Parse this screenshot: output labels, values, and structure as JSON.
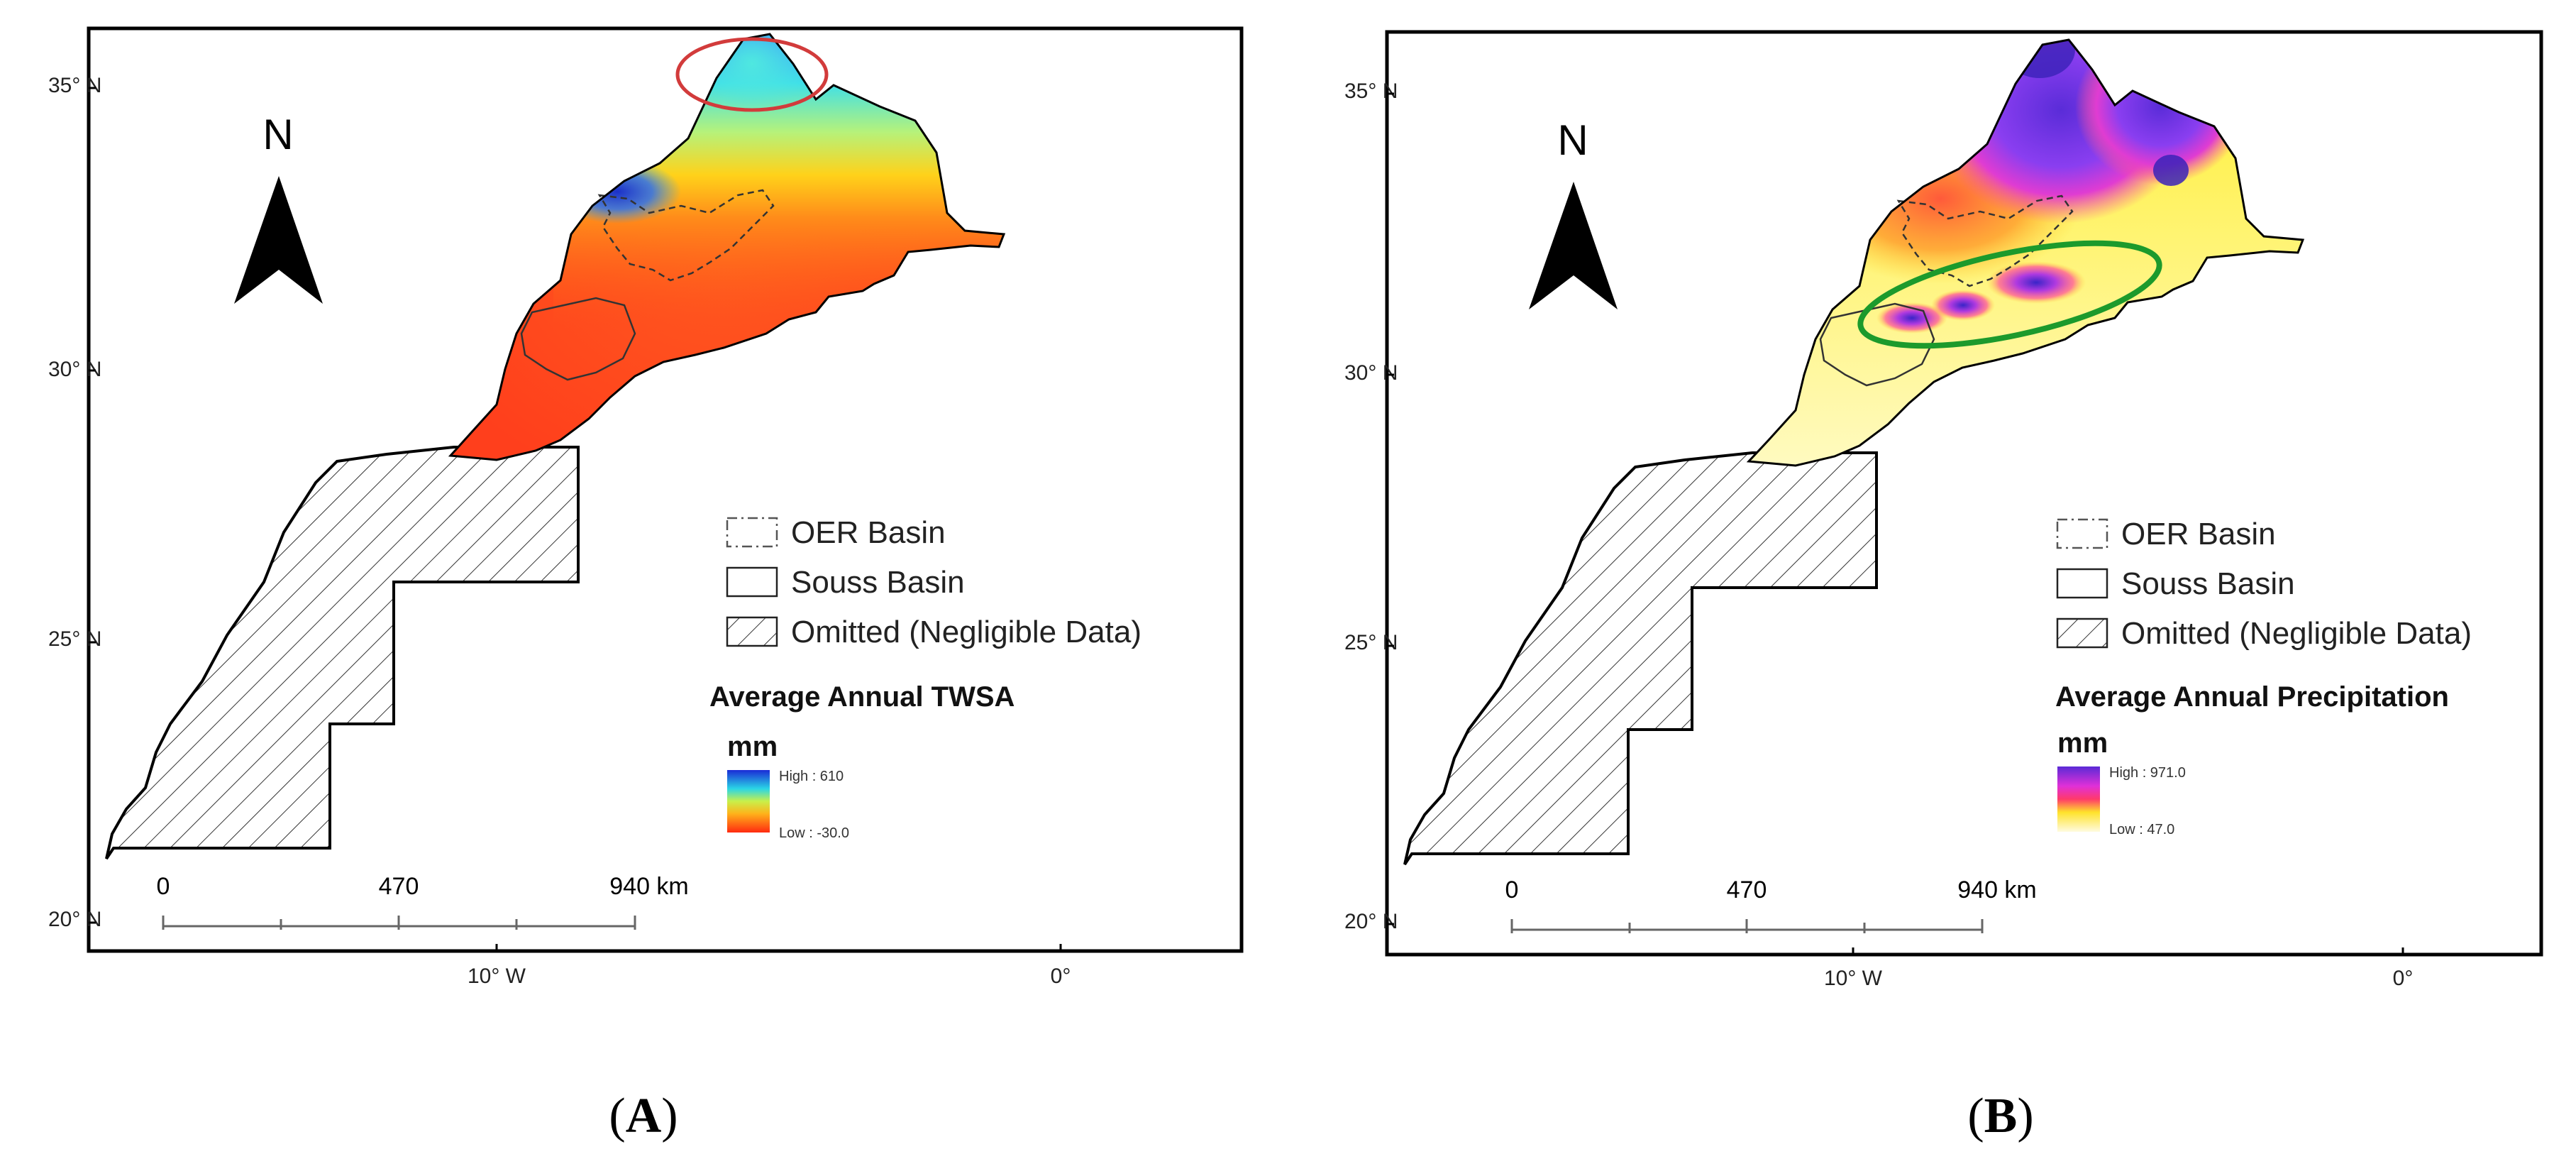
{
  "panels": [
    {
      "id": "A",
      "caption_open": "(",
      "caption_letter": "A",
      "caption_close": ")",
      "north_label": "N",
      "lat_labels": [
        "35° N",
        "30° N",
        "25° N",
        "20° N"
      ],
      "lon_labels": [
        "10° W",
        "0°"
      ],
      "scale": {
        "ticks": [
          "0",
          "470",
          "940 km"
        ]
      },
      "legend": {
        "oer": "OER Basin",
        "souss": "Souss Basin",
        "omitted": "Omitted (Negligible Data)",
        "title": "Average Annual TWSA",
        "unit": "mm",
        "high_label": "High : 610",
        "low_label": "Low : -30.0",
        "high_value": 610,
        "low_value": -30.0
      },
      "highlight_color": "#d23b3b"
    },
    {
      "id": "B",
      "caption_open": "(",
      "caption_letter": "B",
      "caption_close": ")",
      "north_label": "N",
      "lat_labels": [
        "35° N",
        "30° N",
        "25° N",
        "20° N"
      ],
      "lon_labels": [
        "10° W",
        "0°"
      ],
      "scale": {
        "ticks": [
          "0",
          "470",
          "940 km"
        ]
      },
      "legend": {
        "oer": "OER Basin",
        "souss": "Souss Basin",
        "omitted": "Omitted (Negligible Data)",
        "title": "Average Annual Precipitation",
        "unit": "mm",
        "high_label": "High : 971.0",
        "low_label": "Low : 47.0",
        "high_value": 971.0,
        "low_value": 47.0
      },
      "highlight_color": "#1c9a2c"
    }
  ]
}
